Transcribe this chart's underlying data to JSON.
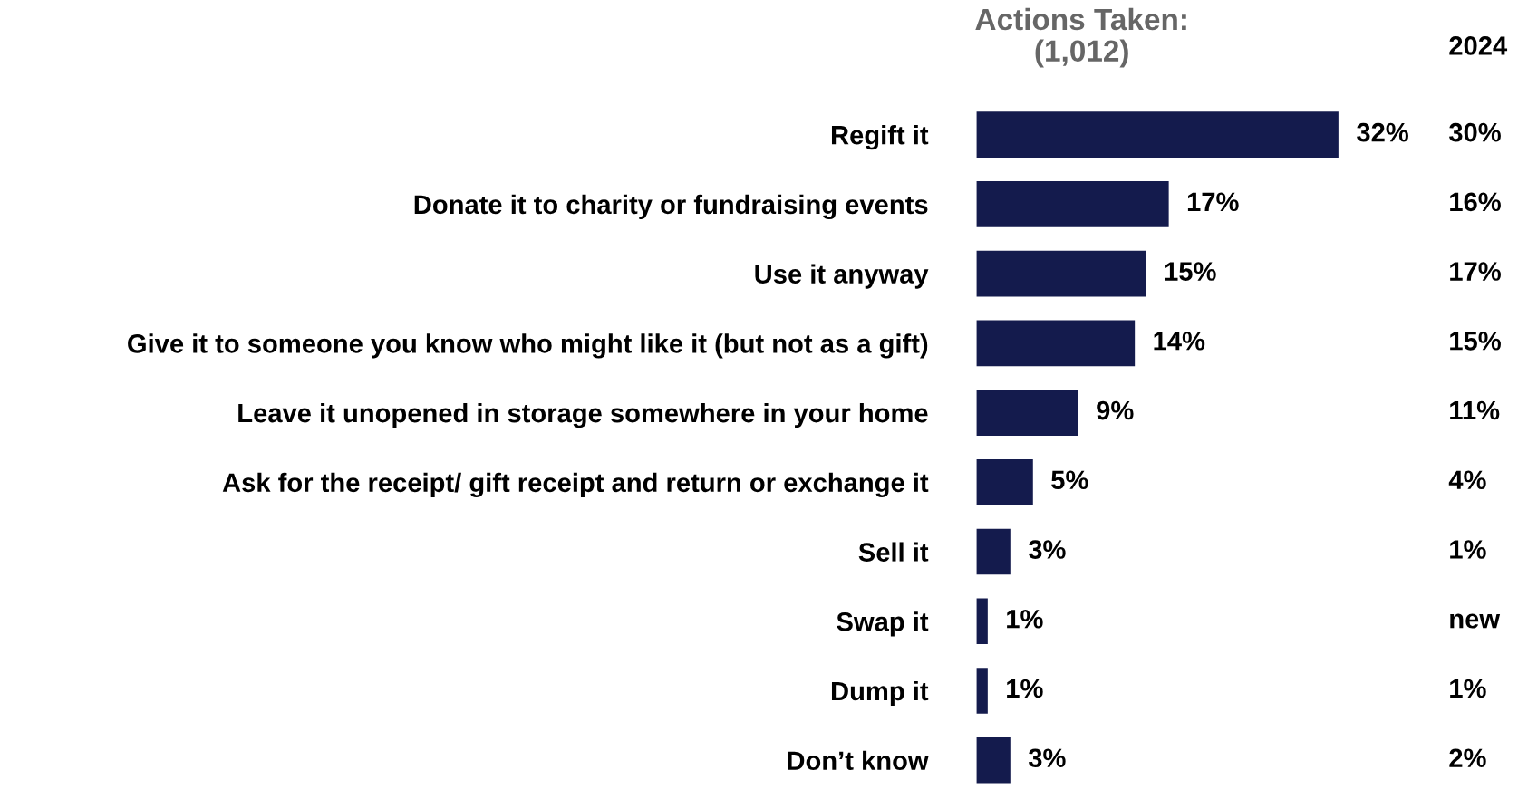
{
  "chart_data": {
    "type": "bar",
    "orientation": "horizontal",
    "title": "Actions Taken:\n(1,012)",
    "categories": [
      "Regift it",
      "Donate it to charity or fundraising events",
      "Use it anyway",
      "Give it to someone you know who might like it (but not as a gift)",
      "Leave it unopened in storage somewhere in your home",
      "Ask for the receipt/ gift receipt and return or exchange it",
      "Sell it",
      "Swap it",
      "Dump it",
      "Don’t know"
    ],
    "values": [
      32,
      17,
      15,
      14,
      9,
      5,
      3,
      1,
      1,
      3
    ],
    "value_labels": [
      "32%",
      "17%",
      "15%",
      "14%",
      "9%",
      "5%",
      "3%",
      "1%",
      "1%",
      "3%"
    ],
    "color": "#141b4d",
    "tick_labels": "y",
    "grid": false,
    "annotations": [
      "2024",
      "30%",
      "16%",
      "17%",
      "15%",
      "11%",
      "4%",
      "1%",
      "new",
      "1%",
      "2%"
    ]
  }
}
